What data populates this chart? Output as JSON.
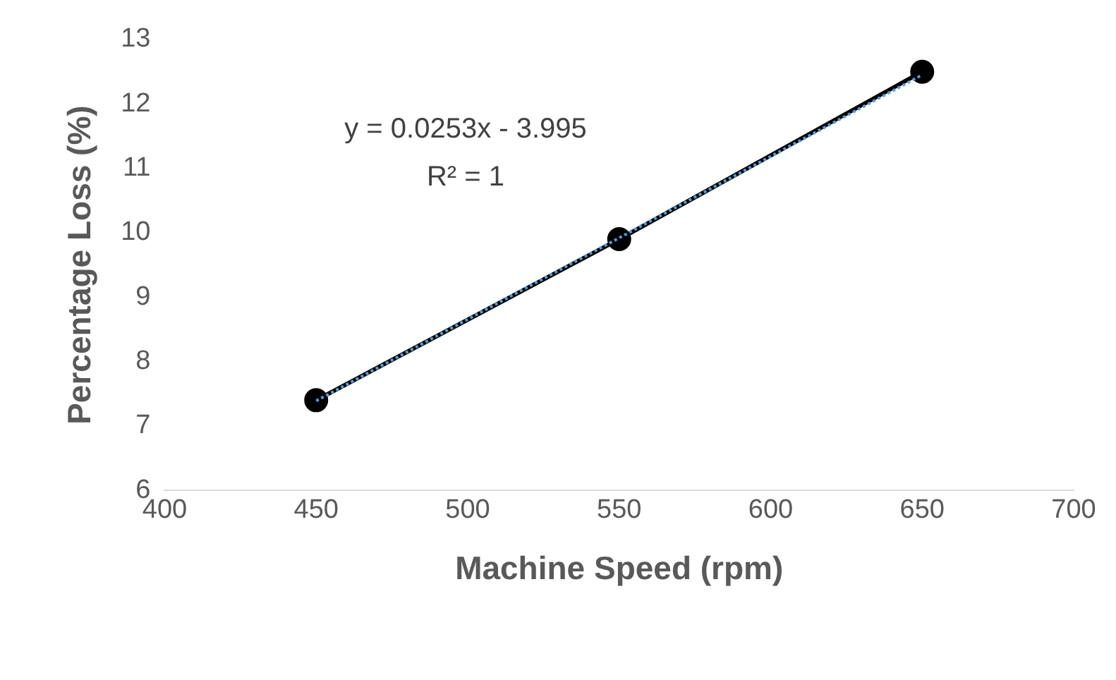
{
  "chart_data": {
    "type": "line",
    "xlabel": "Machine Speed (rpm)",
    "ylabel": "Percentage Loss (%)",
    "x": [
      450,
      550,
      650
    ],
    "series": [
      {
        "type": "line",
        "color": "#000000",
        "values": [
          7.4,
          9.9,
          12.5
        ],
        "marker": "circle"
      },
      {
        "type": "line",
        "color": "#5b9bd5",
        "x": [
          450,
          650
        ],
        "values": [
          7.39,
          12.45
        ],
        "marker": "none",
        "line_style": "dotted"
      }
    ],
    "xlim": [
      400,
      700
    ],
    "xticks": [
      400,
      450,
      500,
      550,
      600,
      650,
      700
    ],
    "ylim": [
      6,
      13
    ],
    "yticks": [
      6,
      7,
      8,
      9,
      10,
      11,
      12,
      13
    ],
    "grid": false,
    "legend": false,
    "annotations": [
      "y = 0.0253x - 3.995",
      "R² = 1"
    ]
  }
}
